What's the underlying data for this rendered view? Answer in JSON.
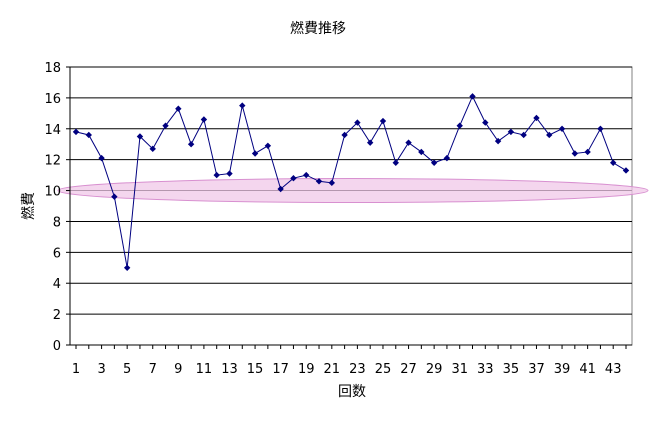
{
  "chart_data": {
    "type": "line",
    "title": "燃費推移",
    "xlabel": "回数",
    "ylabel": "燃費",
    "ylim": [
      0,
      18
    ],
    "yticks": [
      0,
      2,
      4,
      6,
      8,
      10,
      12,
      14,
      16,
      18
    ],
    "xlim": [
      1,
      44
    ],
    "xticks": [
      1,
      3,
      5,
      7,
      9,
      11,
      13,
      15,
      17,
      19,
      21,
      23,
      25,
      27,
      29,
      31,
      33,
      35,
      37,
      39,
      41,
      43
    ],
    "grid": true,
    "highlight_band": {
      "y": 10,
      "color": "#f0c8e8"
    },
    "series": [
      {
        "color": "#000080",
        "x": [
          1,
          2,
          3,
          4,
          5,
          6,
          7,
          8,
          9,
          10,
          11,
          12,
          13,
          14,
          15,
          16,
          17,
          18,
          19,
          20,
          21,
          22,
          23,
          24,
          25,
          26,
          27,
          28,
          29,
          30,
          31,
          32,
          33,
          34,
          35,
          36,
          37,
          38,
          39,
          40,
          41,
          42,
          43,
          44
        ],
        "values": [
          13.8,
          13.6,
          12.1,
          9.6,
          5.0,
          13.5,
          12.7,
          14.2,
          15.3,
          13.0,
          14.6,
          11.0,
          11.1,
          15.5,
          12.4,
          12.9,
          10.1,
          10.8,
          11.0,
          10.6,
          10.5,
          13.6,
          14.4,
          13.1,
          14.5,
          11.8,
          13.1,
          12.5,
          11.8,
          12.1,
          14.2,
          16.1,
          14.4,
          13.2,
          13.8,
          13.6,
          14.7,
          13.6,
          14.0,
          12.4,
          12.5,
          14.0,
          11.8,
          11.3
        ]
      }
    ]
  }
}
